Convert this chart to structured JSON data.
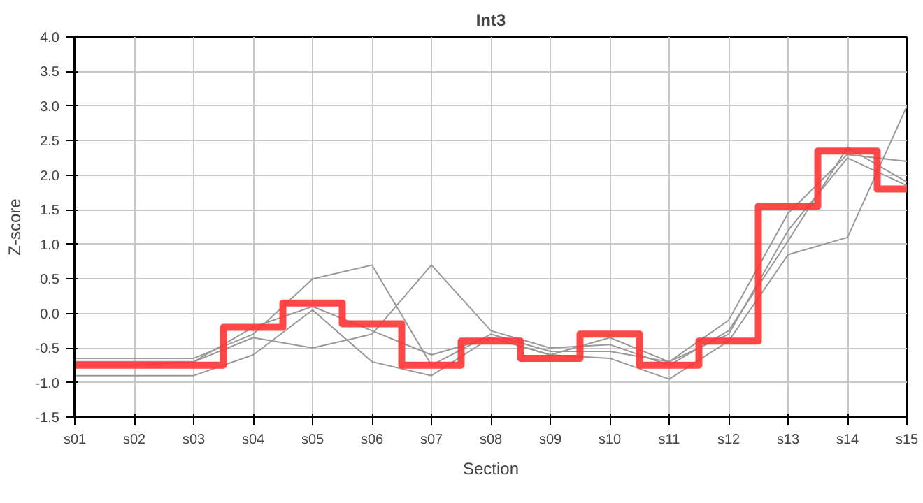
{
  "chart_data": {
    "type": "line",
    "title": "Int3",
    "xlabel": "Section",
    "ylabel": "Z-score",
    "categories": [
      "s01",
      "s02",
      "s03",
      "s04",
      "s05",
      "s06",
      "s07",
      "s08",
      "s09",
      "s10",
      "s11",
      "s12",
      "s13",
      "s14",
      "s15"
    ],
    "ylim": [
      -1.5,
      4.0
    ],
    "yticks": [
      {
        "value": -1.5,
        "label": "-1.5"
      },
      {
        "value": -1.0,
        "label": "-1.0"
      },
      {
        "value": -0.5,
        "label": "-0.5"
      },
      {
        "value": 0.0,
        "label": "0.0"
      },
      {
        "value": 0.5,
        "label": "0.5"
      },
      {
        "value": 1.0,
        "label": "1.0"
      },
      {
        "value": 1.5,
        "label": "1.5"
      },
      {
        "value": 2.0,
        "label": "2.0"
      },
      {
        "value": 2.5,
        "label": "2.5"
      },
      {
        "value": 3.0,
        "label": "3.0"
      },
      {
        "value": 3.5,
        "label": "3.5"
      },
      {
        "value": 4.0,
        "label": "4.0"
      }
    ],
    "grid": true,
    "series": [
      {
        "color": "#999999",
        "values": [
          -0.65,
          -0.65,
          -0.65,
          -0.3,
          0.5,
          0.7,
          -0.75,
          -0.3,
          -0.55,
          -0.55,
          -0.7,
          -0.1,
          1.45,
          2.3,
          2.2
        ]
      },
      {
        "color": "#999999",
        "values": [
          -0.7,
          -0.7,
          -0.7,
          -0.35,
          -0.5,
          -0.3,
          0.7,
          -0.25,
          -0.5,
          -0.45,
          -0.75,
          -0.25,
          1.05,
          2.4,
          1.9
        ]
      },
      {
        "color": "#999999",
        "values": [
          -0.9,
          -0.9,
          -0.9,
          -0.6,
          0.05,
          -0.7,
          -0.9,
          -0.35,
          -0.6,
          -0.65,
          -0.95,
          -0.4,
          0.85,
          1.1,
          3.0
        ]
      },
      {
        "color": "#999999",
        "values": [
          -0.75,
          -0.75,
          -0.7,
          -0.2,
          0.1,
          -0.25,
          -0.6,
          -0.35,
          -0.6,
          -0.35,
          -0.7,
          -0.3,
          1.2,
          2.25,
          1.85
        ]
      },
      {
        "type": "step",
        "color": "#ff3333",
        "values": [
          -0.75,
          -0.75,
          -0.75,
          -0.2,
          0.15,
          -0.15,
          -0.75,
          -0.4,
          -0.65,
          -0.3,
          -0.75,
          -0.4,
          1.55,
          2.35,
          1.8
        ]
      }
    ]
  }
}
